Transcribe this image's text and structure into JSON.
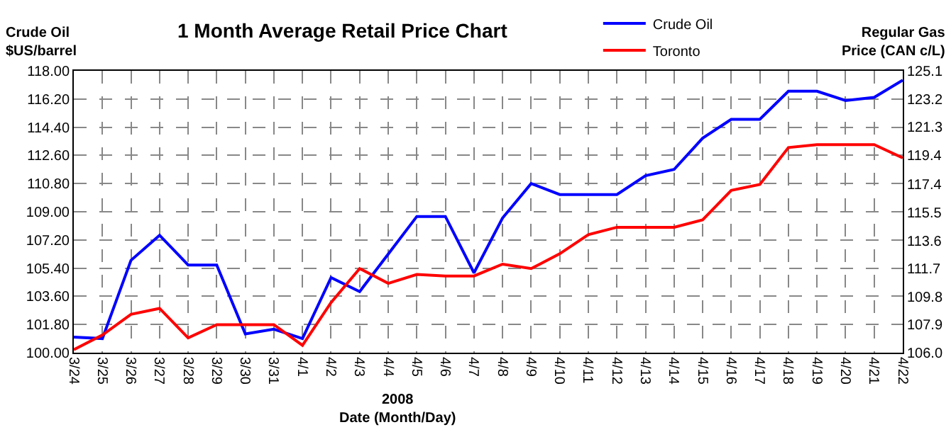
{
  "chart_data": {
    "type": "line",
    "title": "1 Month Average Retail Price Chart",
    "xlabel": "2008\nDate (Month/Day)",
    "ylabel": "Crude Oil\n$US/barrel",
    "y2label": "Regular Gas\nPrice (CAN c/L)",
    "categories": [
      "3/24",
      "3/25",
      "3/26",
      "3/27",
      "3/28",
      "3/29",
      "3/30",
      "3/31",
      "4/1",
      "4/2",
      "4/3",
      "4/4",
      "4/5",
      "4/6",
      "4/7",
      "4/8",
      "4/9",
      "4/10",
      "4/11",
      "4/12",
      "4/13",
      "4/14",
      "4/15",
      "4/16",
      "4/17",
      "4/18",
      "4/19",
      "4/20",
      "4/21",
      "4/22"
    ],
    "series": [
      {
        "name": "Crude Oil",
        "color": "#0000ff",
        "values": [
          101.0,
          100.9,
          105.9,
          107.5,
          105.6,
          105.6,
          101.2,
          101.5,
          100.9,
          104.8,
          103.9,
          106.3,
          108.7,
          108.7,
          105.1,
          108.6,
          110.8,
          110.1,
          110.1,
          110.1,
          111.3,
          111.7,
          113.7,
          114.9,
          114.9,
          116.7,
          116.7,
          116.1,
          116.3,
          117.4
        ]
      },
      {
        "name": "Toronto",
        "color": "#ff0000",
        "axis": "y2",
        "values": [
          106.2,
          107.2,
          108.6,
          109.0,
          107.0,
          107.9,
          107.9,
          107.9,
          106.5,
          109.4,
          111.7,
          110.7,
          111.3,
          111.2,
          111.2,
          112.0,
          111.7,
          112.7,
          114.0,
          114.5,
          114.5,
          114.5,
          115.0,
          117.0,
          117.4,
          119.9,
          120.1,
          120.1,
          120.1,
          119.2
        ]
      }
    ],
    "ylim": [
      100,
      118
    ],
    "yticks": [
      {
        "value": 100,
        "label": "100.00"
      },
      {
        "value": 101.8,
        "label": "101.80"
      },
      {
        "value": 103.6,
        "label": "103.60"
      },
      {
        "value": 105.4,
        "label": "105.40"
      },
      {
        "value": 107.2,
        "label": "107.20"
      },
      {
        "value": 109,
        "label": "109.00"
      },
      {
        "value": 110.8,
        "label": "110.80"
      },
      {
        "value": 112.6,
        "label": "112.60"
      },
      {
        "value": 114.4,
        "label": "114.40"
      },
      {
        "value": 116.2,
        "label": "116.20"
      },
      {
        "value": 118,
        "label": "118.00"
      }
    ],
    "y2lim": [
      106,
      125.1
    ],
    "y2ticks": [
      {
        "value": 106,
        "label": "106.0"
      },
      107.9,
      109.8,
      111.7,
      113.6,
      115.5,
      117.4,
      119.4,
      121.3,
      123.2,
      125.1
    ],
    "grid": true,
    "legend": "top right",
    "marker": "none",
    "line_style": "solid"
  }
}
